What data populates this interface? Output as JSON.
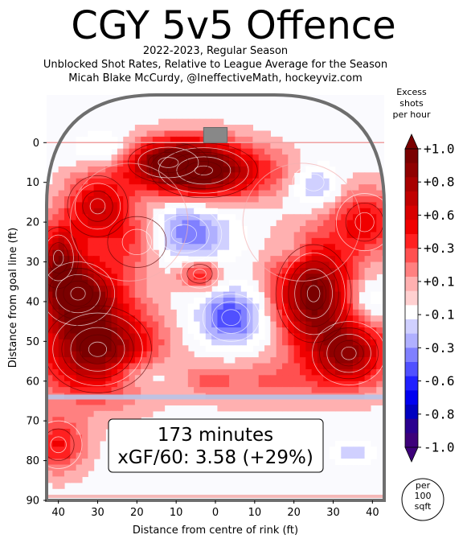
{
  "header": {
    "title": "CGY 5v5 Offence",
    "subtitle_1": "2022-2023, Regular Season",
    "subtitle_2": "Unblocked Shot Rates, Relative to League Average for the Season",
    "subtitle_3": "Micah Blake McCurdy, @IneffectiveMath, hockeyviz.com"
  },
  "chart_data": {
    "type": "heatmap",
    "title": "CGY 5v5 Offence",
    "xlabel": "Distance from centre of rink (ft)",
    "ylabel": "Distance from goal line (ft)",
    "xlim": [
      -43,
      43
    ],
    "ylim": [
      90,
      -12
    ],
    "x_ticks": [
      "40",
      "30",
      "20",
      "10",
      "0",
      "10",
      "20",
      "30",
      "40"
    ],
    "x_tick_values": [
      -40,
      -30,
      -20,
      -10,
      0,
      10,
      20,
      30,
      40
    ],
    "y_ticks": [
      "0",
      "10",
      "20",
      "30",
      "40",
      "50",
      "60",
      "70",
      "80",
      "90"
    ],
    "y_tick_values": [
      0,
      10,
      20,
      30,
      40,
      50,
      60,
      70,
      80,
      90
    ],
    "blue_line_y": 64,
    "goal_line_y": 0,
    "colorbar": {
      "title_lines": [
        "Excess",
        "shots",
        "per hour"
      ],
      "ticks": [
        "+1.0",
        "+0.8",
        "+0.6",
        "+0.3",
        "+0.1",
        "-0.1",
        "-0.3",
        "-0.6",
        "-0.8",
        "-1.0"
      ],
      "unit_lines": [
        "per",
        "100",
        "sqft"
      ],
      "colors": [
        "#7a0000",
        "#8f0000",
        "#a80000",
        "#c00000",
        "#d80000",
        "#f00000",
        "#ff2020",
        "#ff5050",
        "#ff8080",
        "#ffb0b0",
        "#ffd0d0",
        "#ffffff",
        "#d0d0ff",
        "#b0b0ff",
        "#8080ff",
        "#5050ff",
        "#2020ff",
        "#0000f0",
        "#0000c0",
        "#2a008f",
        "#3d007a"
      ]
    },
    "hotspots": [
      {
        "x": -3,
        "y": 7,
        "value": 1.0,
        "sx": 10,
        "sy": 5
      },
      {
        "x": -12,
        "y": 5,
        "value": 0.7,
        "sx": 8,
        "sy": 4
      },
      {
        "x": -30,
        "y": 16,
        "value": 0.6,
        "sx": 6,
        "sy": 6
      },
      {
        "x": -20,
        "y": 25,
        "value": 0.4,
        "sx": 7,
        "sy": 6
      },
      {
        "x": -40,
        "y": 29,
        "value": 0.7,
        "sx": 4,
        "sy": 6
      },
      {
        "x": -35,
        "y": 38,
        "value": 0.9,
        "sx": 7,
        "sy": 6
      },
      {
        "x": -30,
        "y": 52,
        "value": 1.0,
        "sx": 10,
        "sy": 8
      },
      {
        "x": -4,
        "y": 33,
        "value": 0.5,
        "sx": 4,
        "sy": 3
      },
      {
        "x": 20,
        "y": 8,
        "value": 0.2,
        "sx": 8,
        "sy": 4
      },
      {
        "x": 25,
        "y": 38,
        "value": 1.0,
        "sx": 7,
        "sy": 9
      },
      {
        "x": 34,
        "y": 53,
        "value": 0.8,
        "sx": 7,
        "sy": 6
      },
      {
        "x": 38,
        "y": 20,
        "value": 0.5,
        "sx": 6,
        "sy": 6
      },
      {
        "x": 12,
        "y": 60,
        "value": 0.25,
        "sx": 12,
        "sy": 4
      },
      {
        "x": -40,
        "y": 76,
        "value": 0.45,
        "sx": 5,
        "sy": 5
      },
      {
        "x": -2,
        "y": 60,
        "value": 0.15,
        "sx": 4,
        "sy": 3
      },
      {
        "x": -8,
        "y": 23,
        "value": -0.5,
        "sx": 8,
        "sy": 6
      },
      {
        "x": 4,
        "y": 44,
        "value": -0.55,
        "sx": 6,
        "sy": 5
      },
      {
        "x": 25,
        "y": 10,
        "value": -0.4,
        "sx": 5,
        "sy": 4
      },
      {
        "x": -28,
        "y": 2,
        "value": -0.25,
        "sx": 5,
        "sy": 3
      },
      {
        "x": 38,
        "y": 40,
        "value": -0.25,
        "sx": 4,
        "sy": 4
      },
      {
        "x": -20,
        "y": 58,
        "value": -0.3,
        "sx": 6,
        "sy": 3
      },
      {
        "x": 35,
        "y": 78,
        "value": -0.2,
        "sx": 4,
        "sy": 2
      },
      {
        "x": 20,
        "y": 28,
        "value": -0.2,
        "sx": 3,
        "sy": 3
      }
    ]
  },
  "annotation": {
    "line1": "173 minutes",
    "line2": "xGF/60: 3.58 (+29%)"
  }
}
